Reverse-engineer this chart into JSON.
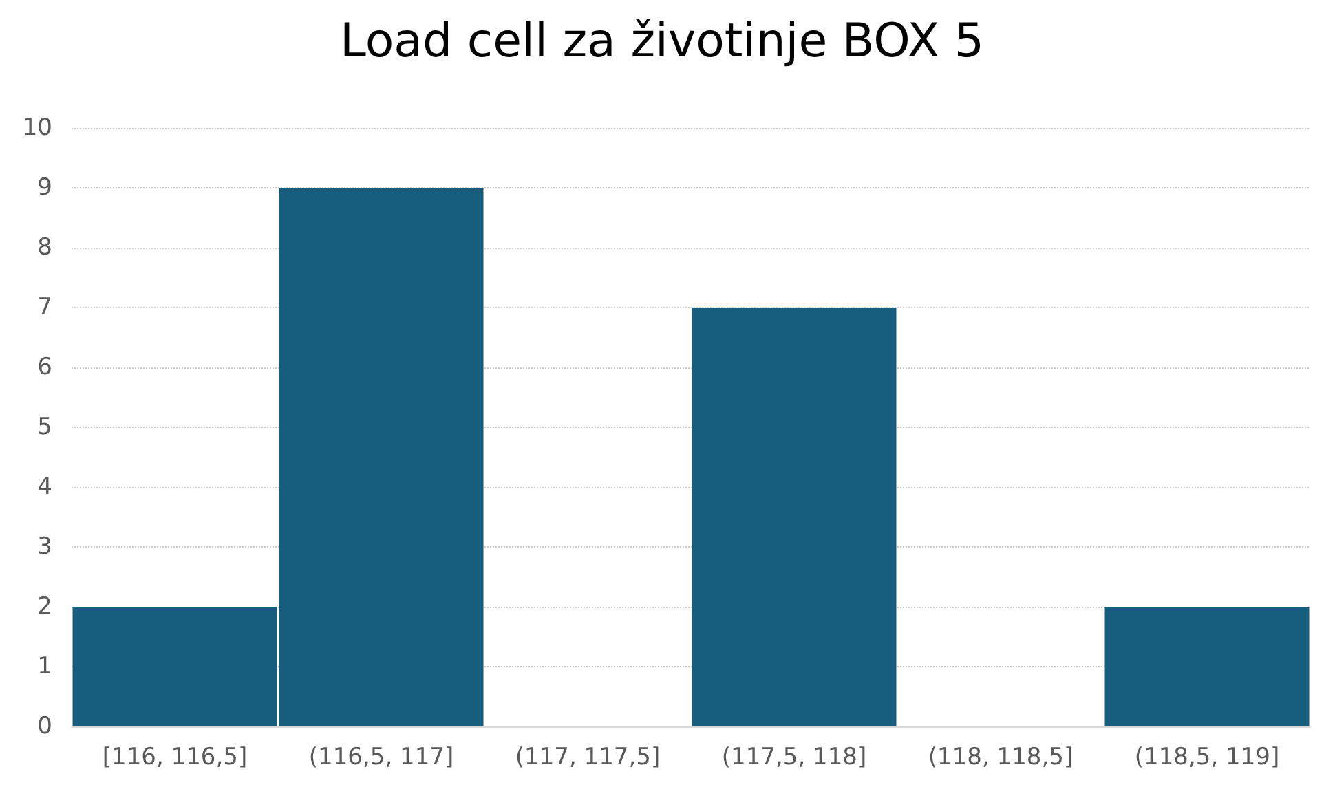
{
  "chart_data": {
    "type": "bar",
    "title": "Load cell za životinje BOX 5",
    "categories": [
      "[116, 116,5]",
      "(116,5, 117]",
      "(117, 117,5]",
      "(117,5, 118]",
      "(118, 118,5]",
      "(118,5, 119]"
    ],
    "values": [
      2,
      9,
      0,
      7,
      0,
      2
    ],
    "color": "#175e7e",
    "ylim": [
      0,
      10
    ],
    "yticks": [
      0,
      1,
      2,
      3,
      4,
      5,
      6,
      7,
      8,
      9,
      10
    ],
    "grid": "y"
  }
}
